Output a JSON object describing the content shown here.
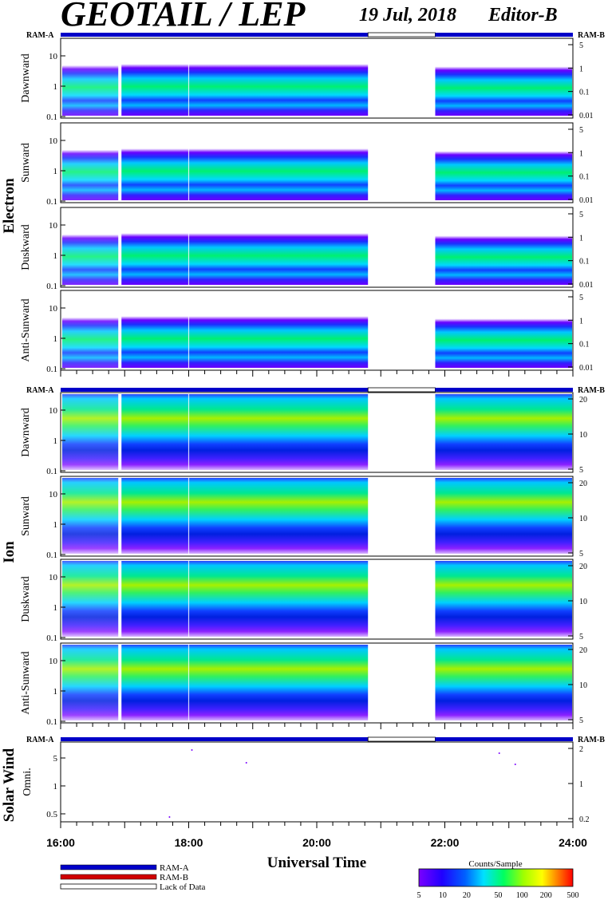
{
  "header": {
    "title": "GEOTAIL / LEP",
    "date": "19 Jul, 2018",
    "editor": "Editor-B"
  },
  "ram_labels": {
    "a": "RAM-A",
    "b": "RAM-B"
  },
  "group_labels": {
    "electron": "Electron",
    "ion": "Ion",
    "solar_wind": "Solar Wind"
  },
  "xaxis": {
    "title": "Universal Time",
    "ticks": [
      "16:00",
      "18:00",
      "20:00",
      "22:00",
      "24:00"
    ]
  },
  "legend": {
    "ram_a": "RAM-A",
    "ram_b": "RAM-B",
    "lack": "Lack of Data",
    "colors": {
      "ram_a": "#0000c8",
      "ram_b": "#d00000",
      "lack": "#ffffff"
    }
  },
  "colorbar": {
    "title": "Counts/Sample",
    "ticks": [
      "5",
      "10",
      "20",
      "50",
      "100",
      "200",
      "500"
    ]
  },
  "chart_data": {
    "type": "heatmap",
    "x_range_hours": [
      16,
      24
    ],
    "data_gap_hours": [
      20.8,
      21.85
    ],
    "electron_panels": [
      {
        "name": "Dawnward",
        "left_ticks": [
          "10",
          "1",
          "0.1"
        ],
        "right_ticks": [
          "5",
          "1",
          "0.1",
          "0.01"
        ]
      },
      {
        "name": "Sunward",
        "left_ticks": [
          "10",
          "1",
          "0.1"
        ],
        "right_ticks": [
          "5",
          "1",
          "0.1",
          "0.01"
        ]
      },
      {
        "name": "Duskward",
        "left_ticks": [
          "10",
          "1",
          "0.1"
        ],
        "right_ticks": [
          "5",
          "1",
          "0.1",
          "0.01"
        ]
      },
      {
        "name": "Anti-Sunward",
        "left_ticks": [
          "10",
          "1",
          "0.1"
        ],
        "right_ticks": [
          "5",
          "1",
          "0.1",
          "0.01"
        ]
      }
    ],
    "ion_panels": [
      {
        "name": "Dawnward",
        "left_ticks": [
          "10",
          "1",
          "0.1"
        ],
        "right_ticks": [
          "20",
          "10",
          "5"
        ]
      },
      {
        "name": "Sunward",
        "left_ticks": [
          "10",
          "1",
          "0.1"
        ],
        "right_ticks": [
          "20",
          "10",
          "5"
        ]
      },
      {
        "name": "Duskward",
        "left_ticks": [
          "10",
          "1",
          "0.1"
        ],
        "right_ticks": [
          "20",
          "10",
          "5"
        ]
      },
      {
        "name": "Anti-Sunward",
        "left_ticks": [
          "10",
          "1",
          "0.1"
        ],
        "right_ticks": [
          "20",
          "10",
          "5"
        ]
      }
    ],
    "solar_wind_panel": {
      "name": "Omni.",
      "left_ticks": [
        "5",
        "1",
        "0.5"
      ],
      "right_ticks": [
        "2",
        "1",
        "0.2"
      ]
    }
  }
}
